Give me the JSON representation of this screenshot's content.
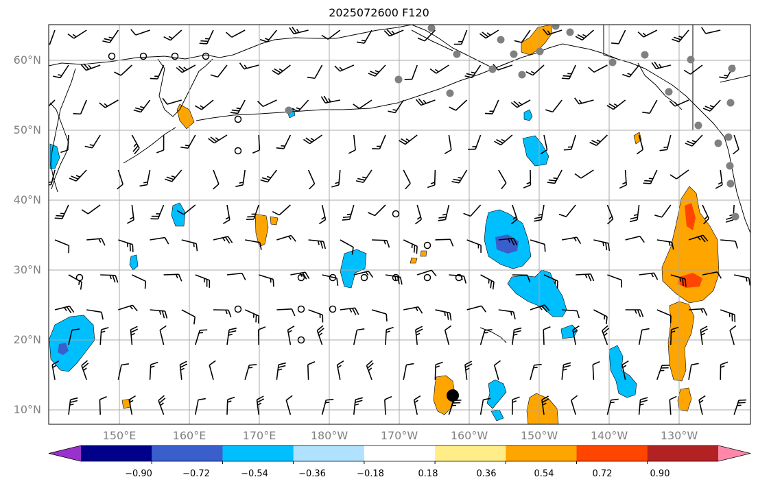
{
  "title": "2025072600 F120",
  "lat_labels": [
    "60°N",
    "50°N",
    "40°N",
    "30°N",
    "20°N",
    "10°N"
  ],
  "lon_labels": [
    "150°E",
    "160°E",
    "170°E",
    "180°W",
    "170°W",
    "160°W",
    "150°W",
    "140°W",
    "130°W"
  ],
  "colorbar": {
    "colors": [
      "#9932cc",
      "#00008b",
      "#3a5fcd",
      "#00bfff",
      "#b0e2ff",
      "#ffffff",
      "#ffee88",
      "#ffa500",
      "#ff4500",
      "#b22222",
      "#ff88aa"
    ],
    "labels": [
      "−0.90",
      "−0.72",
      "−0.54",
      "−0.36",
      "−0.18",
      "0.18",
      "0.36",
      "0.54",
      "0.72",
      "0.90"
    ]
  },
  "style": {
    "grid_color": "#a9a9a9",
    "positive_fill": "#ffa500",
    "positive_strong": "#ff4500",
    "negative_fill": "#00bfff",
    "negative_strong": "#3a5fcd",
    "marker_color": "#808080"
  }
}
